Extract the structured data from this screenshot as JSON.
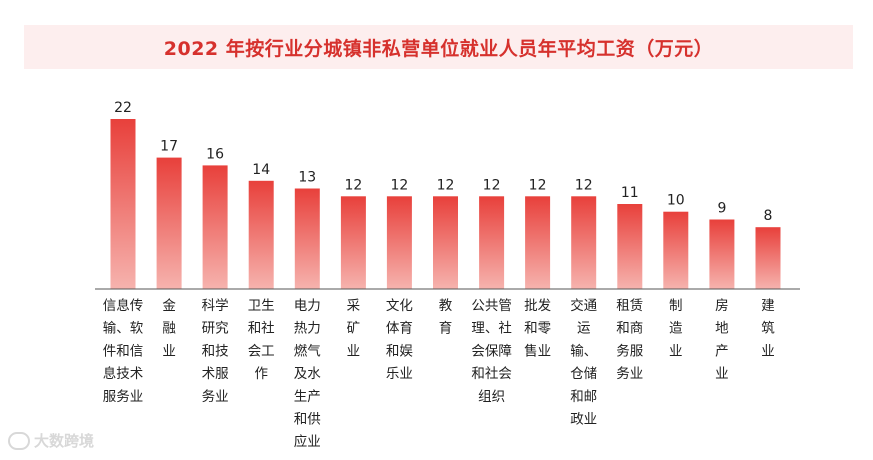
{
  "title": "2022 年按行业分城镇非私营单位就业人员年平均工资（万元）",
  "watermark": "大数跨境",
  "colors": {
    "title": "#d6312d",
    "banner": "#fdeeee",
    "bar_top": "#e8403b",
    "bar_bottom": "#f6b3ae",
    "axis": "#555555",
    "text": "#222222"
  },
  "chart_data": {
    "type": "bar",
    "title": "2022 年按行业分城镇非私营单位就业人员年平均工资（万元）",
    "categories": [
      "信息传输、软件和信息技术服务业",
      "金融业",
      "科学研究和技术服务业",
      "卫生和社会工作",
      "电力热力燃气及水生产和供应业",
      "采矿业",
      "文化体育和娱乐业",
      "教育",
      "公共管理、社会保障和社会组织",
      "批发和零售业",
      "交通运输、仓储和邮政业",
      "租赁和商务服务业",
      "制造业",
      "房地产业",
      "建筑业"
    ],
    "label_lines": [
      [
        "信息传",
        "输、软",
        "件和信",
        "息技术",
        "服务业"
      ],
      [
        "金",
        "融",
        "业"
      ],
      [
        "科学",
        "研究",
        "和技",
        "术服",
        "务业"
      ],
      [
        "卫生",
        "和社",
        "会工",
        "作"
      ],
      [
        "电力",
        "热力",
        "燃气",
        "及水",
        "生产",
        "和供",
        "应业"
      ],
      [
        "采",
        "矿",
        "业"
      ],
      [
        "文化",
        "体育",
        "和娱",
        "乐业"
      ],
      [
        "教",
        "育"
      ],
      [
        "公共管",
        "理、社",
        "会保障",
        "和社会",
        "组织"
      ],
      [
        "批发",
        "和零",
        "售业"
      ],
      [
        "交通",
        "运",
        "输、",
        "仓储",
        "和邮",
        "政业"
      ],
      [
        "租赁",
        "和商",
        "务服",
        "务业"
      ],
      [
        "制",
        "造",
        "业"
      ],
      [
        "房",
        "地",
        "产",
        "业"
      ],
      [
        "建",
        "筑",
        "业"
      ]
    ],
    "values": [
      22,
      17,
      16,
      14,
      13,
      12,
      12,
      12,
      12,
      12,
      12,
      11,
      10,
      9,
      8
    ],
    "xlabel": "",
    "ylabel": "",
    "ylim": [
      0,
      22
    ],
    "grid": false,
    "legend": "none"
  }
}
